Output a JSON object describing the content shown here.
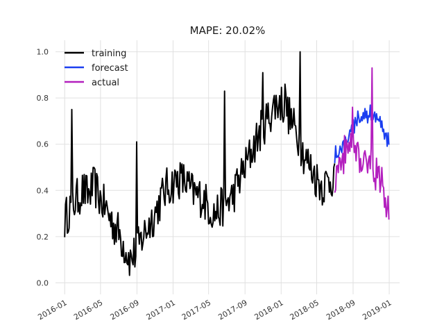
{
  "chart_data": {
    "type": "line",
    "title": "MAPE: 20.02%",
    "xlabel": "",
    "ylabel": "",
    "xlim": [
      "2015-12-01",
      "2019-02-05"
    ],
    "ylim": [
      -0.05,
      1.05
    ],
    "grid": true,
    "legend_position": "top-left",
    "x_ticks": [
      "2016-01",
      "2016-05",
      "2016-09",
      "2017-01",
      "2017-05",
      "2017-09",
      "2018-01",
      "2018-05",
      "2018-09",
      "2019-01"
    ],
    "y_ticks": [
      "0.0",
      "0.2",
      "0.4",
      "0.6",
      "0.8",
      "1.0"
    ],
    "series": [
      {
        "name": "training",
        "color": "#000000",
        "x": [
          "2016-01-01",
          "2016-01-20",
          "2016-02-10",
          "2016-03-01",
          "2016-03-20",
          "2016-04-10",
          "2016-05-01",
          "2016-05-20",
          "2016-06-10",
          "2016-07-01",
          "2016-07-20",
          "2016-08-10",
          "2016-09-01",
          "2016-09-20",
          "2016-10-10",
          "2016-11-01",
          "2016-11-20",
          "2016-12-10",
          "2017-01-01",
          "2017-01-20",
          "2017-02-10",
          "2017-03-01",
          "2017-03-20",
          "2017-04-10",
          "2017-05-01",
          "2017-05-20",
          "2017-06-10",
          "2017-07-01",
          "2017-07-20",
          "2017-08-10",
          "2017-09-01",
          "2017-09-20",
          "2017-10-10",
          "2017-11-01",
          "2017-11-20",
          "2017-12-10",
          "2018-01-01",
          "2018-01-20",
          "2018-02-10",
          "2018-03-01",
          "2018-03-20",
          "2018-04-10",
          "2018-05-01",
          "2018-05-20",
          "2018-06-10",
          "2018-07-01"
        ],
        "y": [
          0.27,
          0.33,
          0.36,
          0.4,
          0.38,
          0.42,
          0.36,
          0.32,
          0.26,
          0.22,
          0.16,
          0.1,
          0.14,
          0.2,
          0.25,
          0.3,
          0.36,
          0.41,
          0.43,
          0.45,
          0.44,
          0.4,
          0.38,
          0.37,
          0.33,
          0.3,
          0.32,
          0.35,
          0.37,
          0.44,
          0.5,
          0.56,
          0.62,
          0.68,
          0.72,
          0.77,
          0.78,
          0.75,
          0.68,
          0.63,
          0.55,
          0.5,
          0.45,
          0.42,
          0.44,
          0.47
        ],
        "spikes": [
          {
            "x": "2016-01-25",
            "y": 0.75
          },
          {
            "x": "2016-09-01",
            "y": 0.61
          },
          {
            "x": "2017-06-25",
            "y": 0.83
          },
          {
            "x": "2017-11-01",
            "y": 0.91
          },
          {
            "x": "2018-03-05",
            "y": 1.0
          },
          {
            "x": "2018-01-15",
            "y": 0.86
          }
        ]
      },
      {
        "name": "forecast",
        "color": "#1a3ef0",
        "x": [
          "2018-07-01",
          "2018-07-20",
          "2018-08-10",
          "2018-09-01",
          "2018-09-20",
          "2018-10-10",
          "2018-11-01",
          "2018-11-20",
          "2018-12-10",
          "2018-12-31"
        ],
        "y": [
          0.55,
          0.58,
          0.62,
          0.67,
          0.71,
          0.73,
          0.73,
          0.71,
          0.67,
          0.61
        ]
      },
      {
        "name": "actual",
        "color": "#b31fbe",
        "x": [
          "2018-07-01",
          "2018-07-20",
          "2018-08-10",
          "2018-09-01",
          "2018-09-20",
          "2018-10-10",
          "2018-11-01",
          "2018-11-20",
          "2018-12-10",
          "2018-12-31"
        ],
        "y": [
          0.46,
          0.53,
          0.58,
          0.6,
          0.57,
          0.54,
          0.53,
          0.48,
          0.42,
          0.3
        ],
        "spikes": [
          {
            "x": "2018-11-05",
            "y": 0.93
          },
          {
            "x": "2018-08-30",
            "y": 0.76
          }
        ]
      }
    ]
  }
}
